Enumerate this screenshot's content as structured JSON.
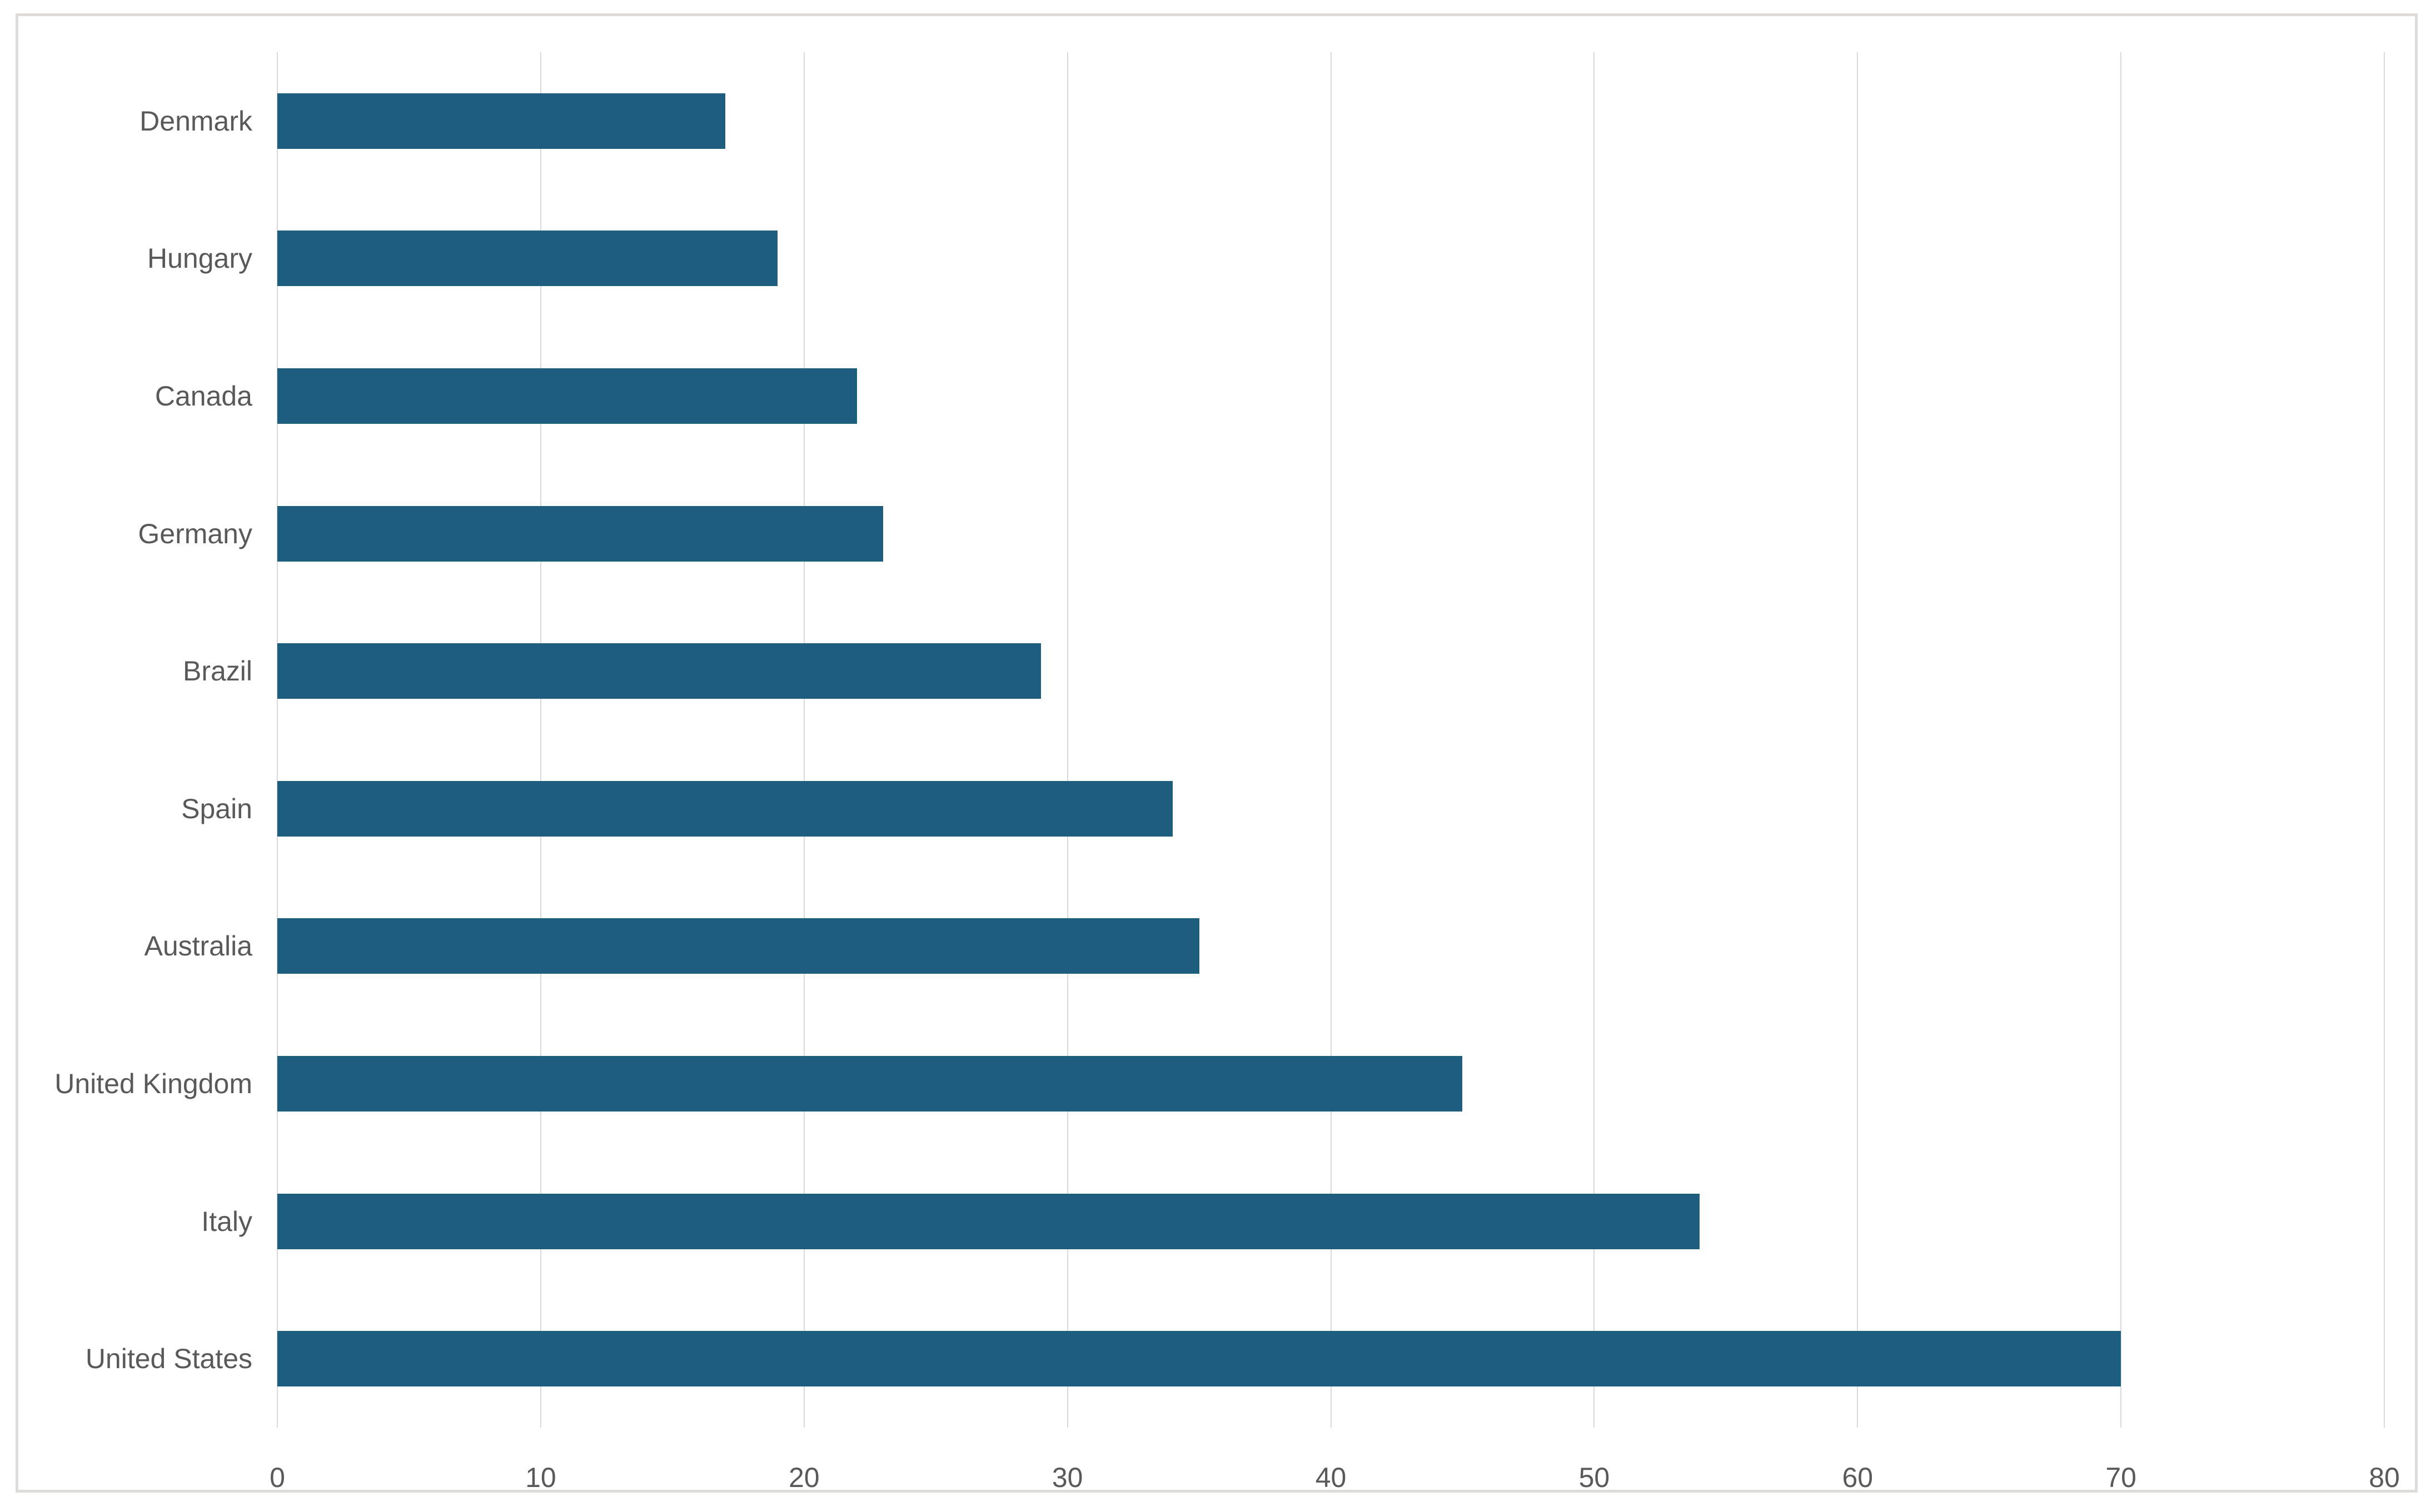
{
  "chart_data": {
    "type": "bar",
    "orientation": "horizontal",
    "title": "",
    "xlabel": "",
    "ylabel": "",
    "categories": [
      "Denmark",
      "Hungary",
      "Canada",
      "Germany",
      "Brazil",
      "Spain",
      "Australia",
      "United Kingdom",
      "Italy",
      "United States"
    ],
    "values": [
      17,
      19,
      22,
      23,
      29,
      34,
      35,
      45,
      54,
      70
    ],
    "xlim": [
      0,
      80
    ],
    "x_ticks": [
      0,
      10,
      20,
      30,
      40,
      50,
      60,
      70,
      80
    ],
    "grid": "vertical-gridlines-on",
    "legend": "none",
    "colors": {
      "bar_fill": "#1d5e7e",
      "gridline": "#d9d9d9",
      "axis_text": "#595959",
      "frame_border": "#dedbd8",
      "background": "#ffffff"
    }
  }
}
